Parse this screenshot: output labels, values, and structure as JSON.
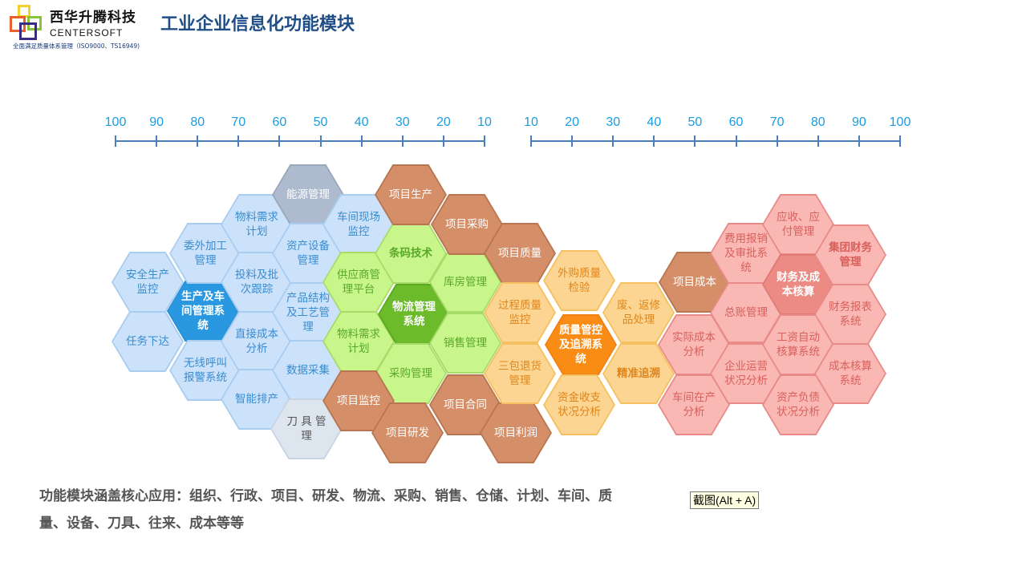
{
  "header": {
    "brand_cn": "西华升腾科技",
    "brand_en": "CENTERSOFT",
    "tagline": "全面满足质量体系管理（ISO9000、TS16949)",
    "title": "工业企业信息化功能模块"
  },
  "scales": {
    "left": [
      "100",
      "90",
      "80",
      "70",
      "60",
      "50",
      "40",
      "30",
      "20",
      "10"
    ],
    "right": [
      "10",
      "20",
      "30",
      "40",
      "50",
      "60",
      "70",
      "80",
      "90",
      "100"
    ]
  },
  "hexagons": [
    {
      "label": "安全生产监控",
      "group": "production"
    },
    {
      "label": "任务下达",
      "group": "production"
    },
    {
      "label": "生产及车间管理系统",
      "group": "production-core"
    },
    {
      "label": "委外加工管理",
      "group": "production"
    },
    {
      "label": "无线呼叫报警系统",
      "group": "production"
    },
    {
      "label": "物料需求计划",
      "group": "production"
    },
    {
      "label": "投料及批次跟踪",
      "group": "production"
    },
    {
      "label": "直接成本分析",
      "group": "production"
    },
    {
      "label": "智能排产",
      "group": "production"
    },
    {
      "label": "能源管理",
      "group": "energy"
    },
    {
      "label": "资产设备管理",
      "group": "production"
    },
    {
      "label": "产品结构及工艺管理",
      "group": "production"
    },
    {
      "label": "数据采集",
      "group": "production"
    },
    {
      "label": "刀 具 管 理",
      "group": "tools"
    },
    {
      "label": "车间现场监控",
      "group": "production"
    },
    {
      "label": "供应商管理平台",
      "group": "logistics"
    },
    {
      "label": "物料需求计划",
      "group": "logistics"
    },
    {
      "label": "条码技术",
      "group": "logistics"
    },
    {
      "label": "物流管理系统",
      "group": "logistics-core"
    },
    {
      "label": "采购管理",
      "group": "logistics"
    },
    {
      "label": "库房管理",
      "group": "logistics"
    },
    {
      "label": "销售管理",
      "group": "logistics"
    },
    {
      "label": "项目生产",
      "group": "project"
    },
    {
      "label": "项目采购",
      "group": "project"
    },
    {
      "label": "项目质量",
      "group": "project"
    },
    {
      "label": "项目监控",
      "group": "project"
    },
    {
      "label": "项目研发",
      "group": "project"
    },
    {
      "label": "项目合同",
      "group": "project"
    },
    {
      "label": "项目利润",
      "group": "project"
    },
    {
      "label": "外购质量检验",
      "group": "quality"
    },
    {
      "label": "过程质量监控",
      "group": "quality"
    },
    {
      "label": "质量管控及追溯系统",
      "group": "quality-core"
    },
    {
      "label": "三包退货管理",
      "group": "quality"
    },
    {
      "label": "资金收支状况分析",
      "group": "quality"
    },
    {
      "label": "废、返修品处理",
      "group": "quality"
    },
    {
      "label": "精准追溯",
      "group": "quality"
    },
    {
      "label": "项目成本",
      "group": "project"
    },
    {
      "label": "实际成本分析",
      "group": "finance"
    },
    {
      "label": "车间在产分析",
      "group": "finance"
    },
    {
      "label": "费用报销及审批系统",
      "group": "finance"
    },
    {
      "label": "总账管理",
      "group": "finance"
    },
    {
      "label": "企业运营状况分析",
      "group": "finance"
    },
    {
      "label": "应收、应付管理",
      "group": "finance"
    },
    {
      "label": "财务及成本核算",
      "group": "finance-core"
    },
    {
      "label": "工资自动核算系统",
      "group": "finance"
    },
    {
      "label": "资产负债状况分析",
      "group": "finance"
    },
    {
      "label": "集团财务管理",
      "group": "finance"
    },
    {
      "label": "财务报表系统",
      "group": "finance"
    },
    {
      "label": "成本核算系统",
      "group": "finance"
    }
  ],
  "summary": "功能模块涵盖核心应用：组织、行政、项目、研发、物流、采购、销售、仓储、计划、车间、质量、设备、刀具、往来、成本等等",
  "tooltip": "截图(Alt + A)",
  "colors": {
    "title": "#1f4e86",
    "scale": "#1a9ce0",
    "production": "#cbe2fa",
    "logistics": "#c8f68a",
    "project": "#d48e68",
    "quality": "#fdd592",
    "finance": "#fab8b4"
  }
}
